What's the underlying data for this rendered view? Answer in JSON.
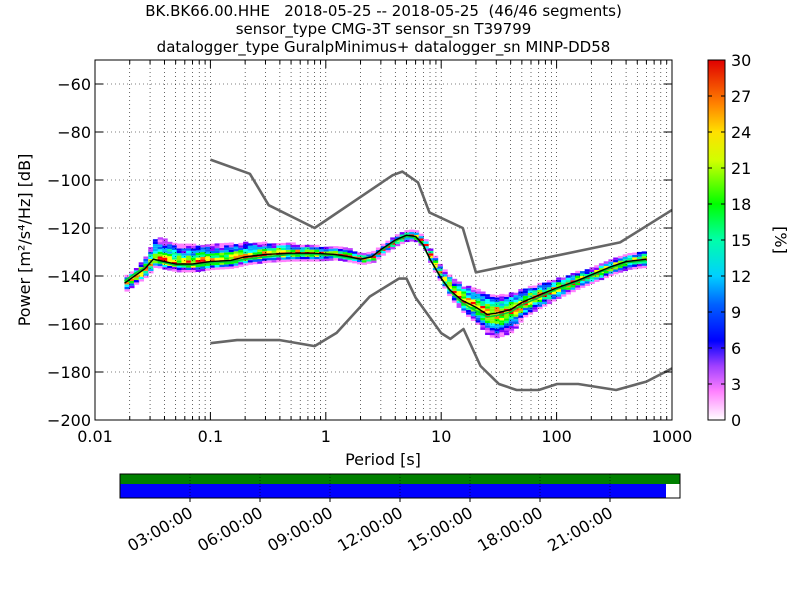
{
  "title_lines": [
    "BK.BK66.00.HHE   2018-05-25 -- 2018-05-25  (46/46 segments)",
    "sensor_type CMG-3T sensor_sn T39799",
    "datalogger_type GuralpMinimus+ datalogger_sn MINP-DD58"
  ],
  "colors": {
    "noise_model": "#666666",
    "mode_line": "#000000",
    "mean_line": "#00cc33",
    "coverage_data": "#008000",
    "coverage_gaps": "#0000ff"
  },
  "chart_data": {
    "type": "heatmap",
    "xscale": "log",
    "xlim": [
      0.01,
      1000
    ],
    "ylim": [
      -200,
      -50
    ],
    "xlabel": "Period [s]",
    "ylabel": "Power [m²/s⁴/Hz] [dB]",
    "x_ticks": [
      0.01,
      0.1,
      1,
      10,
      100,
      1000
    ],
    "x_tick_labels": [
      "0.01",
      "0.1",
      "1",
      "10",
      "100",
      "1000"
    ],
    "y_ticks": [
      -200,
      -180,
      -160,
      -140,
      -120,
      -100,
      -80,
      -60
    ],
    "y_tick_labels": [
      "−200",
      "−180",
      "−160",
      "−140",
      "−120",
      "−100",
      "−80",
      "−60"
    ],
    "grid": true,
    "colorbar": {
      "label": "[%]",
      "range": [
        0,
        30
      ],
      "ticks": [
        0,
        3,
        6,
        9,
        12,
        15,
        18,
        21,
        24,
        27,
        30
      ],
      "tick_labels": [
        "0",
        "3",
        "6",
        "9",
        "12",
        "15",
        "18",
        "21",
        "24",
        "27",
        "30"
      ]
    },
    "high_noise_model": {
      "x": [
        0.1,
        0.22,
        0.32,
        0.8,
        3.8,
        4.6,
        6.3,
        7.9,
        15.4,
        20,
        354.8,
        1000
      ],
      "y": [
        -91.5,
        -97.4,
        -110.5,
        -120,
        -98,
        -96.5,
        -101,
        -113.5,
        -120,
        -138.5,
        -126,
        -112.5
      ]
    },
    "low_noise_model": {
      "x": [
        0.1,
        0.17,
        0.4,
        0.8,
        1.24,
        2.4,
        4.3,
        5,
        6,
        10,
        12,
        15.6,
        21.9,
        31.6,
        45,
        70,
        101,
        154,
        328,
        600,
        1000
      ],
      "y": [
        -168,
        -166.7,
        -166.7,
        -169.2,
        -163.7,
        -148.6,
        -141.1,
        -141.1,
        -149,
        -163.8,
        -166.2,
        -162.1,
        -177.5,
        -185,
        -187.5,
        -187.5,
        -185,
        -185,
        -187.5,
        -184,
        -178.5
      ]
    },
    "mode_curve": {
      "x": [
        0.018,
        0.022,
        0.027,
        0.032,
        0.04,
        0.05,
        0.07,
        0.1,
        0.15,
        0.2,
        0.3,
        0.5,
        0.8,
        1.2,
        1.6,
        2,
        2.5,
        3,
        4,
        5,
        6,
        7,
        8,
        10,
        12,
        15,
        20,
        25,
        30,
        40,
        50,
        70,
        100,
        150,
        200,
        300,
        400,
        600
      ],
      "y": [
        -143,
        -140,
        -137,
        -133,
        -134,
        -135,
        -135,
        -134,
        -133.5,
        -132,
        -131,
        -130.5,
        -130.5,
        -131,
        -132,
        -133,
        -132,
        -129,
        -125,
        -123,
        -123.5,
        -127,
        -133,
        -141,
        -146,
        -150,
        -153,
        -156,
        -155.5,
        -154,
        -151,
        -148,
        -145,
        -142,
        -139.5,
        -136,
        -134,
        -133
      ]
    },
    "mean_curve": {
      "x": [
        0.018,
        0.022,
        0.027,
        0.032,
        0.04,
        0.05,
        0.07,
        0.1,
        0.15,
        0.2,
        0.3,
        0.5,
        0.8,
        1.2,
        1.6,
        2,
        2.5,
        3,
        4,
        5,
        6,
        7,
        8,
        10,
        12,
        15,
        20,
        25,
        30,
        40,
        50,
        70,
        100,
        150,
        200,
        300,
        400,
        600
      ],
      "y": [
        -142,
        -139,
        -136.5,
        -133,
        -134.5,
        -135.5,
        -135.5,
        -134.5,
        -134,
        -133,
        -132,
        -131,
        -131,
        -131.5,
        -132.5,
        -133,
        -132,
        -129.5,
        -125.5,
        -123.5,
        -124,
        -127.5,
        -133,
        -141,
        -146.5,
        -151,
        -154.5,
        -157,
        -156.5,
        -155,
        -152,
        -149,
        -145.5,
        -142.5,
        -140,
        -136.5,
        -134.5,
        -133.5
      ]
    },
    "spread_upper": [
      3,
      4,
      6,
      9,
      9,
      8,
      8,
      7,
      7,
      6,
      5,
      4,
      3,
      3,
      3,
      2,
      2,
      2,
      2,
      2,
      2,
      2,
      3,
      4,
      5,
      6,
      8,
      8,
      8,
      7,
      6,
      5,
      4,
      4,
      3,
      3,
      3,
      4
    ],
    "spread_lower": [
      3,
      3,
      3,
      3,
      3,
      3,
      3,
      3,
      3,
      3,
      3,
      3,
      3,
      2,
      2,
      2,
      2,
      2,
      2,
      2,
      2,
      2,
      3,
      3,
      4,
      5,
      7,
      9,
      10,
      9,
      6,
      5,
      4,
      3,
      3,
      3,
      3,
      3
    ],
    "time_axis": {
      "tick_labels": [
        "03:00:00",
        "06:00:00",
        "09:00:00",
        "12:00:00",
        "15:00:00",
        "18:00:00",
        "21:00:00"
      ],
      "data_coverage_fraction": 1.0,
      "psd_coverage_fraction": 0.975
    }
  }
}
